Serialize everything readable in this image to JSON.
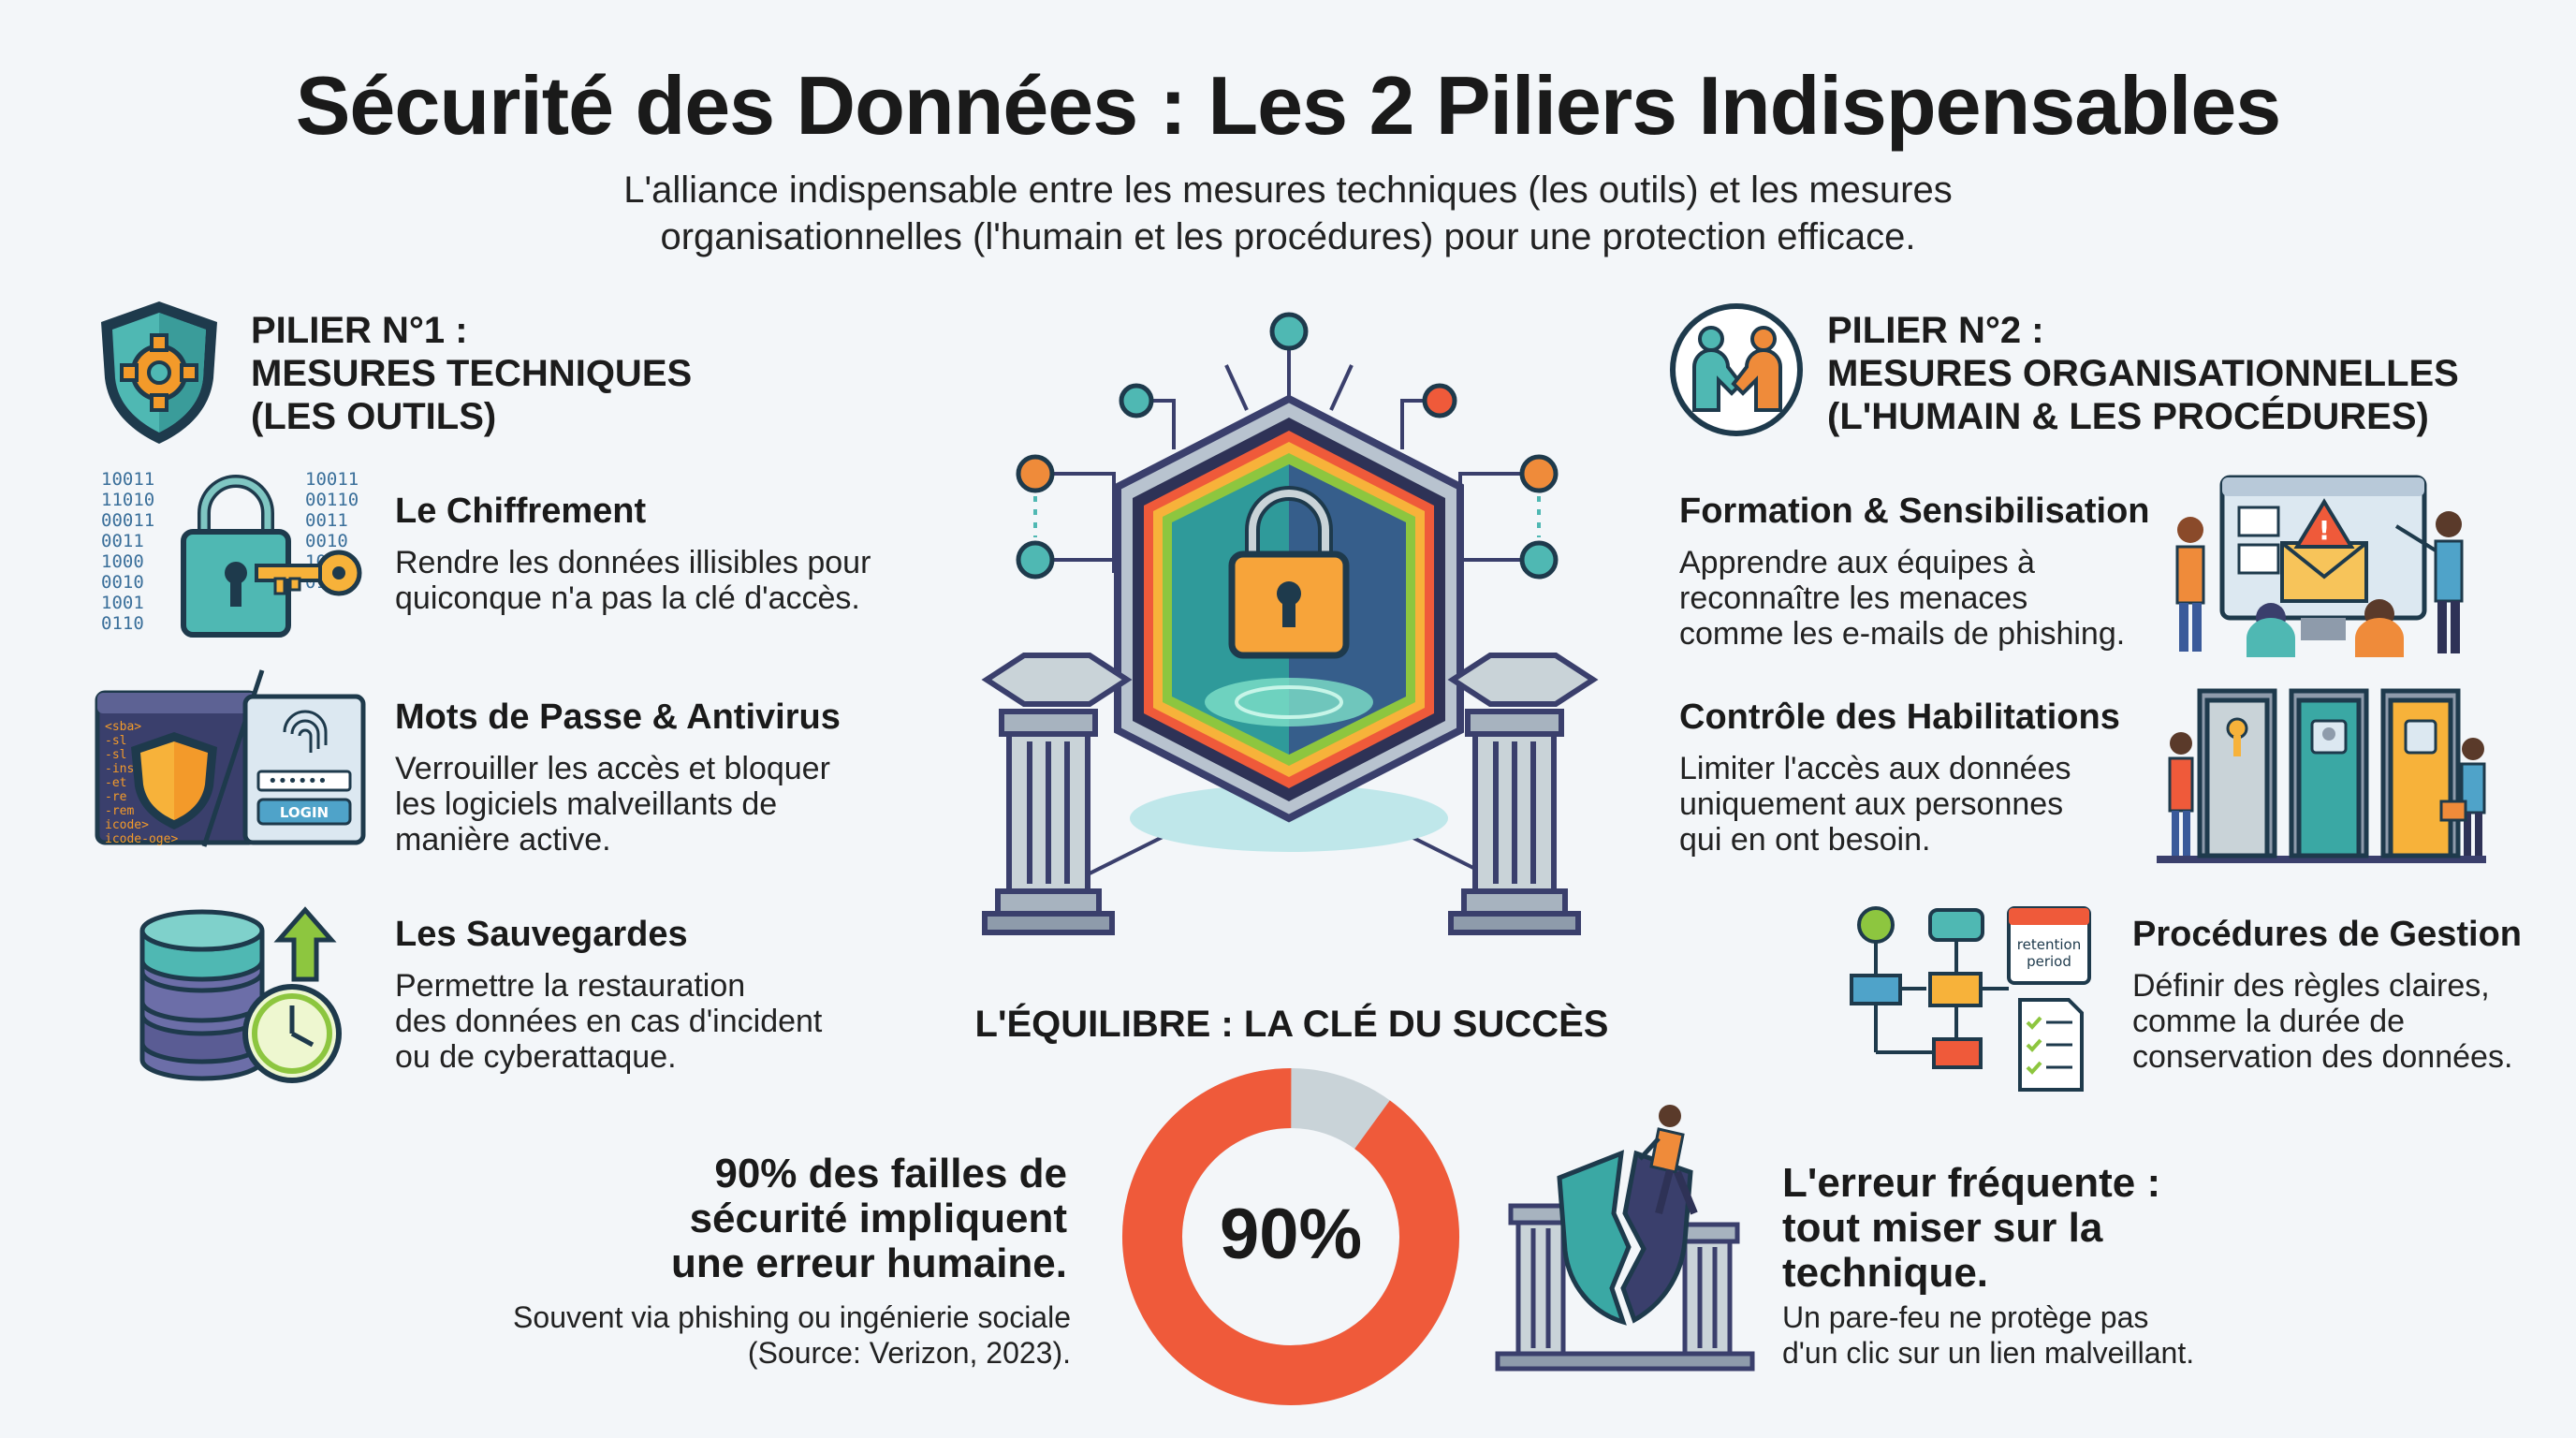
{
  "header": {
    "title": "Sécurité des Données : Les 2 Piliers Indispensables",
    "subtitle_line1": "L'alliance indispensable entre les mesures techniques (les outils) et les mesures",
    "subtitle_line2": "organisationnelles (l'humain et les procédures) pour une protection efficace."
  },
  "pillar1": {
    "line1": "PILIER N°1 :",
    "line2": "MESURES TECHNIQUES",
    "line3": "(LES OUTILS)",
    "icon": "shield-gear-icon",
    "items": [
      {
        "title": "Le Chiffrement",
        "desc1": "Rendre les données illisibles pour",
        "desc2": "quiconque n'a pas la clé d'accès.",
        "icon": "padlock-key-binary-icon"
      },
      {
        "title": "Mots de Passe & Antivirus",
        "desc1": "Verrouiller les accès et bloquer",
        "desc2": "les logiciels malveillants de",
        "desc3": "manière active.",
        "icon": "antivirus-login-icon"
      },
      {
        "title": "Les Sauvegardes",
        "desc1": "Permettre la restauration",
        "desc2": "des données en cas d'incident",
        "desc3": "ou de cyberattaque.",
        "icon": "database-clock-icon"
      }
    ]
  },
  "pillar2": {
    "line1": "PILIER N°2 :",
    "line2": "MESURES ORGANISATIONNELLES",
    "line3": "(L'HUMAIN & LES PROCÉDURES)",
    "icon": "handshake-icon",
    "items": [
      {
        "title": "Formation & Sensibilisation",
        "desc1": "Apprendre aux équipes à",
        "desc2": "reconnaître les menaces",
        "desc3": "comme les e-mails de phishing.",
        "icon": "training-screen-icon"
      },
      {
        "title": "Contrôle des Habilitations",
        "desc1": "Limiter l'accès aux données",
        "desc2": "uniquement aux personnes",
        "desc3": "qui en ont besoin.",
        "icon": "access-doors-icon"
      },
      {
        "title": "Procédures de Gestion",
        "desc1": "Définir des règles claires,",
        "desc2": "comme la durée de",
        "desc3": "conservation des données.",
        "icon": "flowchart-calendar-icon",
        "calendar_label1": "retention",
        "calendar_label2": "period"
      }
    ]
  },
  "center": {
    "label": "L'ÉQUILIBRE : LA CLÉ DU SUCCÈS",
    "icon": "hexagon-padlock-pillars-icon"
  },
  "stat": {
    "value_label": "90%",
    "percent": 90,
    "title1": "90% des failles de",
    "title2": "sécurité impliquent",
    "title3": "une erreur humaine.",
    "note1": "Souvent via phishing ou ingénierie sociale",
    "note2": "(Source: Verizon, 2023).",
    "colors": {
      "filled": "#ef5a3a",
      "rest": "#c9d3d8"
    }
  },
  "error": {
    "title1": "L'erreur fréquente :",
    "title2": "tout miser sur la",
    "title3": "technique.",
    "desc1": "Un pare-feu ne protège pas",
    "desc2": "d'un clic sur un lien malveillant.",
    "icon": "broken-shield-icon"
  },
  "icon_code_lines": [
    "<sba>",
    "-sl",
    "-sl",
    "-ins",
    "-et",
    "-re",
    "-rem",
    "icode>",
    "icode-oge>"
  ],
  "login_label": "LOGIN",
  "binary_left": [
    "10011",
    "11010",
    "00011",
    "0011",
    "1000",
    "0010",
    "1001",
    "0110"
  ],
  "binary_right": [
    "10011",
    "00110",
    "0011",
    "0010",
    "1001",
    "0101"
  ]
}
